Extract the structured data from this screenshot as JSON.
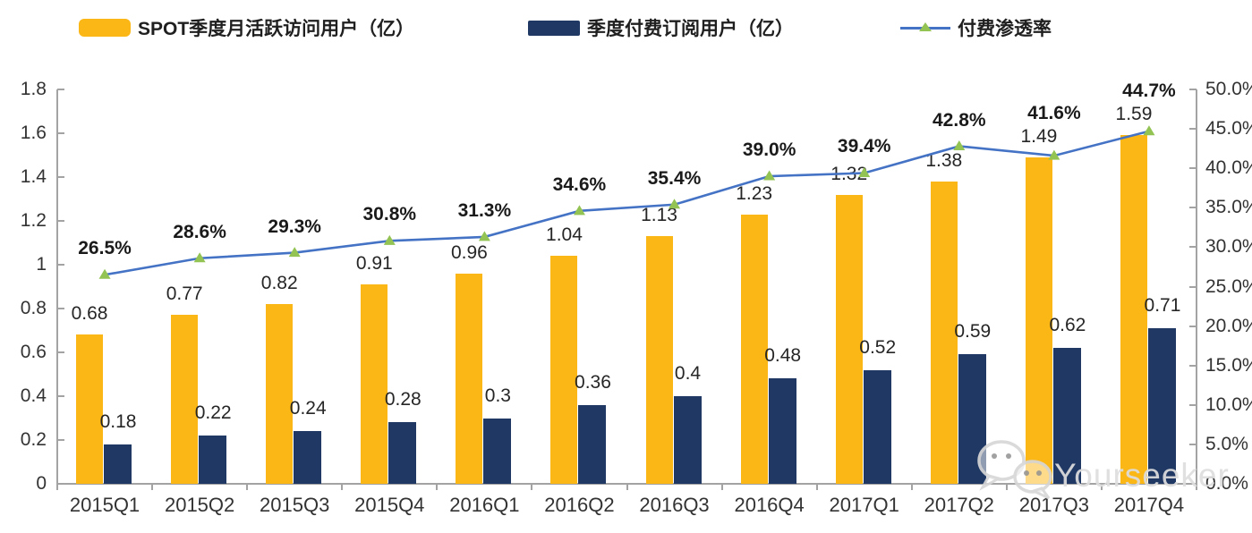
{
  "chart_data": {
    "type": "bar",
    "subtype": "bar-line-combo",
    "legend_position": "top",
    "gridlines": false,
    "categories": [
      "2015Q1",
      "2015Q2",
      "2015Q3",
      "2015Q4",
      "2016Q1",
      "2016Q2",
      "2016Q3",
      "2016Q4",
      "2017Q1",
      "2017Q2",
      "2017Q3",
      "2017Q4"
    ],
    "series": [
      {
        "name": "SPOT季度月活跃访问用户（亿）",
        "kind": "bar",
        "color": "#FBB716",
        "values": [
          0.68,
          0.77,
          0.82,
          0.91,
          0.96,
          1.04,
          1.13,
          1.23,
          1.32,
          1.38,
          1.49,
          1.59
        ],
        "labels": [
          "0.68",
          "0.77",
          "0.82",
          "0.91",
          "0.96",
          "1.04",
          "1.13",
          "1.23",
          "1.32",
          "1.38",
          "1.49",
          "1.59"
        ]
      },
      {
        "name": "季度付费订阅用户（亿）",
        "kind": "bar",
        "color": "#1F3864",
        "values": [
          0.18,
          0.22,
          0.24,
          0.28,
          0.3,
          0.36,
          0.4,
          0.48,
          0.52,
          0.59,
          0.62,
          0.71
        ],
        "labels": [
          "0.18",
          "0.22",
          "0.24",
          "0.28",
          "0.3",
          "0.36",
          "0.4",
          "0.48",
          "0.52",
          "0.59",
          "0.62",
          "0.71"
        ]
      },
      {
        "name": "付费渗透率",
        "kind": "line",
        "axis": "right",
        "color": "#4472C4",
        "marker_color": "#93C353",
        "values": [
          26.5,
          28.6,
          29.3,
          30.8,
          31.3,
          34.6,
          35.4,
          39.0,
          39.4,
          42.8,
          41.6,
          44.7
        ],
        "labels": [
          "26.5%",
          "28.6%",
          "29.3%",
          "30.8%",
          "31.3%",
          "34.6%",
          "35.4%",
          "39.0%",
          "39.4%",
          "42.8%",
          "41.6%",
          "44.7%"
        ]
      }
    ],
    "left_axis": {
      "min": 0,
      "max": 1.8,
      "step": 0.2,
      "ticks": [
        "0",
        "0.2",
        "0.4",
        "0.6",
        "0.8",
        "1",
        "1.2",
        "1.4",
        "1.6",
        "1.8"
      ]
    },
    "right_axis": {
      "min": 0,
      "max": 50,
      "step": 5,
      "ticks": [
        "0.0%",
        "5.0%",
        "10.0%",
        "15.0%",
        "20.0%",
        "25.0%",
        "30.0%",
        "35.0%",
        "40.0%",
        "45.0%",
        "50.0%"
      ]
    }
  },
  "watermark": {
    "text": "Yourseeker",
    "icon": "wechat-icon"
  }
}
